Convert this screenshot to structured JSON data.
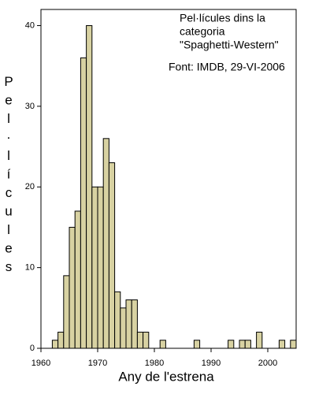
{
  "chart_data": {
    "type": "histogram",
    "annotations": [
      "Pel·lícules dins la",
      "categoria",
      "\"Spaghetti-Western\"",
      "Font: IMDB, 29-VI-2006"
    ],
    "x_label": "Any de l'estrena",
    "y_label": "Pel·lícules",
    "bins": [
      1960,
      1961,
      1962,
      1963,
      1964,
      1965,
      1966,
      1967,
      1968,
      1969,
      1970,
      1971,
      1972,
      1973,
      1974,
      1975,
      1976,
      1977,
      1978,
      1979,
      1980,
      1981,
      1982,
      1983,
      1984,
      1985,
      1986,
      1987,
      1988,
      1989,
      1990,
      1991,
      1992,
      1993,
      1994,
      1995,
      1996,
      1997,
      1998,
      1999,
      2000,
      2001,
      2002,
      2003,
      2004,
      2005
    ],
    "values": [
      0,
      0,
      1,
      2,
      9,
      15,
      17,
      36,
      40,
      20,
      20,
      26,
      23,
      7,
      5,
      6,
      6,
      2,
      2,
      0,
      0,
      1,
      0,
      0,
      0,
      0,
      0,
      1,
      0,
      0,
      0,
      0,
      0,
      1,
      0,
      1,
      1,
      0,
      2,
      0,
      0,
      0,
      1,
      0,
      1
    ],
    "color": "#d8d2a2",
    "xlim": [
      1960,
      2005
    ],
    "xticks": [
      1960,
      1970,
      1980,
      1990,
      2000
    ],
    "ylim": [
      0,
      42
    ],
    "yticks": [
      0,
      10,
      20,
      30,
      40
    ]
  }
}
